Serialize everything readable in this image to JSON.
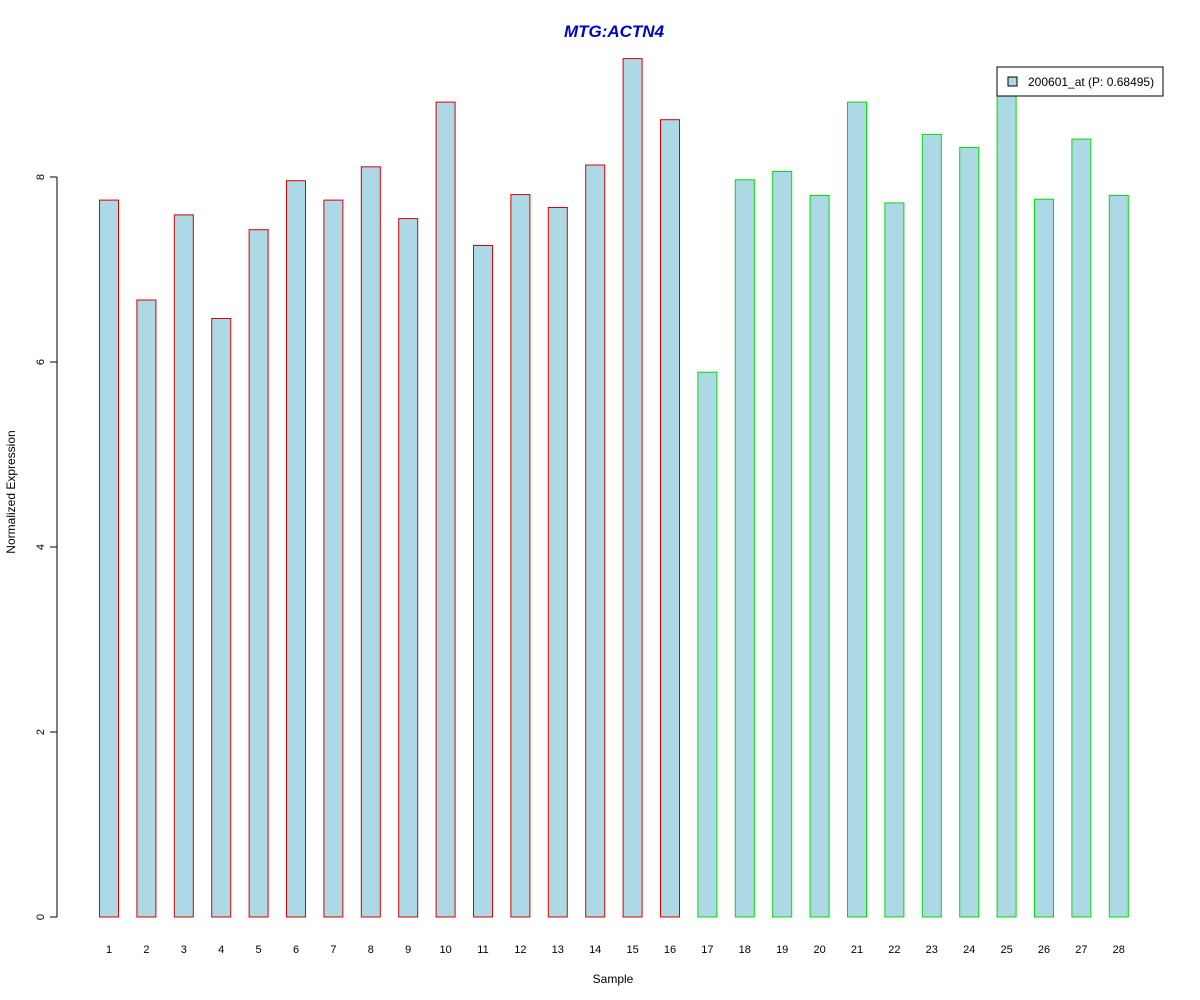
{
  "chart_data": {
    "type": "bar",
    "title": "MTG:ACTN4",
    "xlabel": "Sample",
    "ylabel": "Normalized Expression",
    "categories": [
      "1",
      "2",
      "3",
      "4",
      "5",
      "6",
      "7",
      "8",
      "9",
      "10",
      "11",
      "12",
      "13",
      "14",
      "15",
      "16",
      "17",
      "18",
      "19",
      "20",
      "21",
      "22",
      "23",
      "24",
      "25",
      "26",
      "27",
      "28"
    ],
    "series": [
      {
        "name": "200601_at (P: 0.68495)",
        "values": [
          7.75,
          6.67,
          7.59,
          6.47,
          7.43,
          7.96,
          7.75,
          8.11,
          7.55,
          8.81,
          7.26,
          7.81,
          7.67,
          8.13,
          9.28,
          8.62,
          5.89,
          7.97,
          8.06,
          7.8,
          8.81,
          7.72,
          8.46,
          8.32,
          8.96,
          7.76,
          8.41,
          7.8
        ]
      }
    ],
    "group_border_colors": [
      "#dd0000",
      "#dd0000",
      "#dd0000",
      "#dd0000",
      "#dd0000",
      "#dd0000",
      "#dd0000",
      "#dd0000",
      "#dd0000",
      "#dd0000",
      "#dd0000",
      "#dd0000",
      "#dd0000",
      "#dd0000",
      "#dd0000",
      "#dd0000",
      "#00dd00",
      "#00dd00",
      "#00dd00",
      "#00dd00",
      "#00dd00",
      "#00dd00",
      "#00dd00",
      "#00dd00",
      "#00dd00",
      "#00dd00",
      "#00dd00",
      "#00dd00"
    ],
    "yticks": [
      0,
      2,
      4,
      6,
      8
    ],
    "ylim": [
      0,
      9.3
    ],
    "legend_position": "top-right",
    "grid": false,
    "colors": {
      "bar_fill": "#add8e6",
      "title": "#0000cc"
    }
  }
}
